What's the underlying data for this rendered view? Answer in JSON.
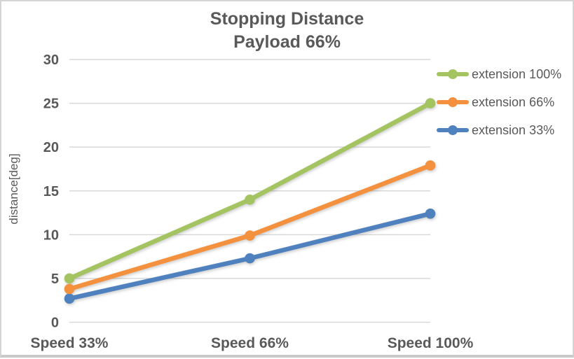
{
  "chart_data": {
    "type": "line",
    "title": "Stopping Distance",
    "subtitle": "Payload 66%",
    "categories": [
      "Speed 33%",
      "Speed 66%",
      "Speed 100%"
    ],
    "series": [
      {
        "name": "extension 100%",
        "color": "#A4C361",
        "values": [
          5.0,
          14.0,
          25.0
        ]
      },
      {
        "name": "extension 66%",
        "color": "#F4913F",
        "values": [
          3.8,
          9.9,
          17.9
        ]
      },
      {
        "name": "extension 33%",
        "color": "#4E81BD",
        "values": [
          2.7,
          7.3,
          12.4
        ]
      }
    ],
    "xlabel": "",
    "ylabel": "distance[deg]",
    "ylim": [
      0,
      30
    ],
    "ytick_step": 5,
    "yticks": [
      "0",
      "5",
      "10",
      "15",
      "20",
      "25",
      "30"
    ],
    "grid": true,
    "legend_position": "right",
    "gridline_color": "#D9D9D9",
    "text_color": "#595959",
    "title_color": "#595959"
  }
}
